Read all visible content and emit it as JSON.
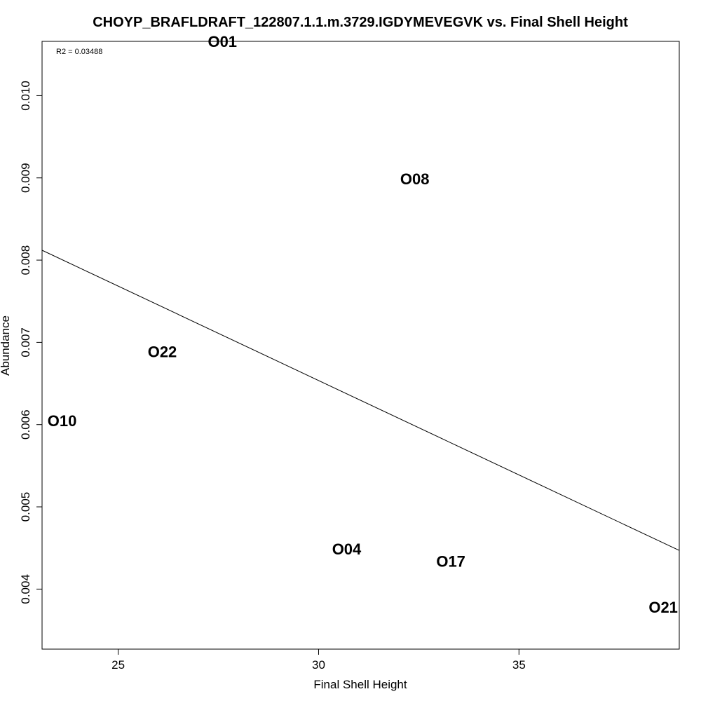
{
  "chart_data": {
    "type": "scatter",
    "title": "CHOYP_BRAFLDRAFT_122807.1.1.m.3729.IGDYMEVEGVK vs. Final Shell Height",
    "xlabel": "Final Shell Height",
    "ylabel": "Abundance",
    "annotation": "R2 = 0.03488",
    "xlim": [
      23.1,
      39.0
    ],
    "ylim": [
      0.00327,
      0.01066
    ],
    "x_ticks": [
      25,
      30,
      35
    ],
    "x_tick_labels": [
      "25",
      "30",
      "35"
    ],
    "y_ticks": [
      0.004,
      0.005,
      0.006,
      0.007,
      0.008,
      0.009,
      0.01
    ],
    "y_tick_labels": [
      "0.004",
      "0.005",
      "0.006",
      "0.007",
      "0.008",
      "0.009",
      "0.010"
    ],
    "points": [
      {
        "label": "O01",
        "x": 27.6,
        "y": 0.01066
      },
      {
        "label": "O08",
        "x": 32.4,
        "y": 0.00899
      },
      {
        "label": "O22",
        "x": 26.1,
        "y": 0.00689
      },
      {
        "label": "O10",
        "x": 23.6,
        "y": 0.00605
      },
      {
        "label": "O04",
        "x": 30.7,
        "y": 0.00449
      },
      {
        "label": "O17",
        "x": 33.3,
        "y": 0.00434
      },
      {
        "label": "O21",
        "x": 38.6,
        "y": 0.00378
      }
    ],
    "trend_line": {
      "x": [
        23.1,
        39.0
      ],
      "y": [
        0.00812,
        0.00447
      ]
    },
    "grid": false,
    "legend": "none"
  }
}
